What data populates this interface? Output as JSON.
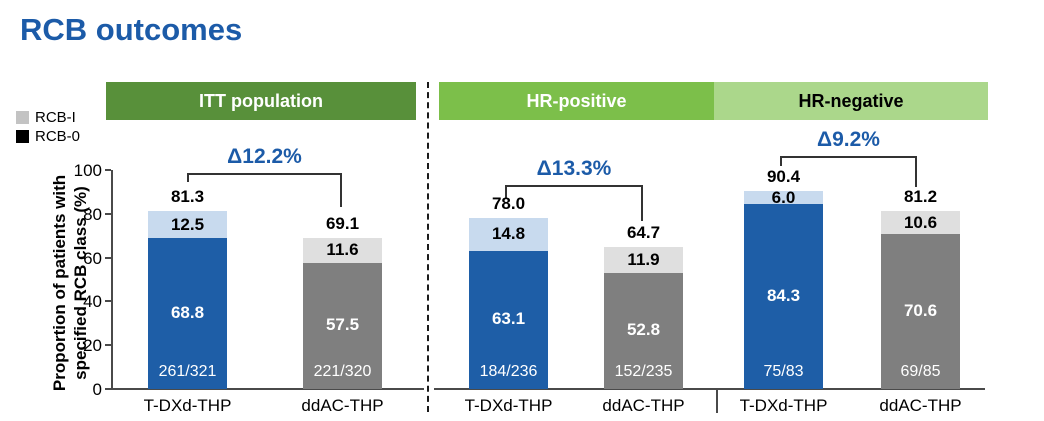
{
  "title": "RCB outcomes",
  "colors": {
    "accent_blue": "#1c5ba8",
    "tdxd_bar": "#1e5ea7",
    "tdxd_rcb1": "#c8daee",
    "ddac_bar": "#7f7f7f",
    "ddac_rcb1": "#dfdfdf",
    "header_itt": "#58903a",
    "header_hr_pos": "#7cbf4a",
    "header_hr_neg": "#abd78b"
  },
  "legend": [
    {
      "label": "RCB-I",
      "color": "#c3c3c3"
    },
    {
      "label": "RCB-0",
      "color": "#000000"
    }
  ],
  "ylabel_line1": "Proportion of patients with",
  "ylabel_line2": "specified RCB class (%)",
  "chart_data": {
    "type": "bar",
    "stacked": true,
    "title": "RCB outcomes",
    "ylabel": "Proportion of patients with specified RCB class (%)",
    "ylim": [
      0,
      100
    ],
    "yticks": [
      0,
      20,
      40,
      60,
      80,
      100
    ],
    "grid": false,
    "legend_position": "upper-left",
    "series_legend": [
      "RCB-I",
      "RCB-0"
    ],
    "groups": [
      {
        "header": "ITT population",
        "header_bg": "#58903a",
        "header_text_color": "#ffffff",
        "delta_label": "Δ12.2%",
        "bars": [
          {
            "arm": "T-DXd-THP",
            "rcb0": 68.8,
            "rcb0_label": "68.8",
            "rcb1": 12.5,
            "rcb1_label": "12.5",
            "total": 81.3,
            "total_label": "81.3",
            "fraction": "261/321",
            "bar_color": "#1e5ea7",
            "rcb1_color": "#c8daee"
          },
          {
            "arm": "ddAC-THP",
            "rcb0": 57.5,
            "rcb0_label": "57.5",
            "rcb1": 11.6,
            "rcb1_label": "11.6",
            "total": 69.1,
            "total_label": "69.1",
            "fraction": "221/320",
            "bar_color": "#7f7f7f",
            "rcb1_color": "#dfdfdf"
          }
        ]
      },
      {
        "header": "HR-positive",
        "header_bg": "#7cbf4a",
        "header_text_color": "#ffffff",
        "delta_label": "Δ13.3%",
        "bars": [
          {
            "arm": "T-DXd-THP",
            "rcb0": 63.1,
            "rcb0_label": "63.1",
            "rcb1": 14.8,
            "rcb1_label": "14.8",
            "total": 78.0,
            "total_label": "78.0",
            "fraction": "184/236",
            "bar_color": "#1e5ea7",
            "rcb1_color": "#c8daee"
          },
          {
            "arm": "ddAC-THP",
            "rcb0": 52.8,
            "rcb0_label": "52.8",
            "rcb1": 11.9,
            "rcb1_label": "11.9",
            "total": 64.7,
            "total_label": "64.7",
            "fraction": "152/235",
            "bar_color": "#7f7f7f",
            "rcb1_color": "#dfdfdf"
          }
        ]
      },
      {
        "header": "HR-negative",
        "header_bg": "#abd78b",
        "header_text_color": "#000000",
        "delta_label": "Δ9.2%",
        "bars": [
          {
            "arm": "T-DXd-THP",
            "rcb0": 84.3,
            "rcb0_label": "84.3",
            "rcb1": 6.0,
            "rcb1_label": "6.0",
            "total": 90.4,
            "total_label": "90.4",
            "fraction": "75/83",
            "bar_color": "#1e5ea7",
            "rcb1_color": "#c8daee"
          },
          {
            "arm": "ddAC-THP",
            "rcb0": 70.6,
            "rcb0_label": "70.6",
            "rcb1": 10.6,
            "rcb1_label": "10.6",
            "total": 81.2,
            "total_label": "81.2",
            "fraction": "69/85",
            "bar_color": "#7f7f7f",
            "rcb1_color": "#dfdfdf"
          }
        ]
      }
    ]
  }
}
